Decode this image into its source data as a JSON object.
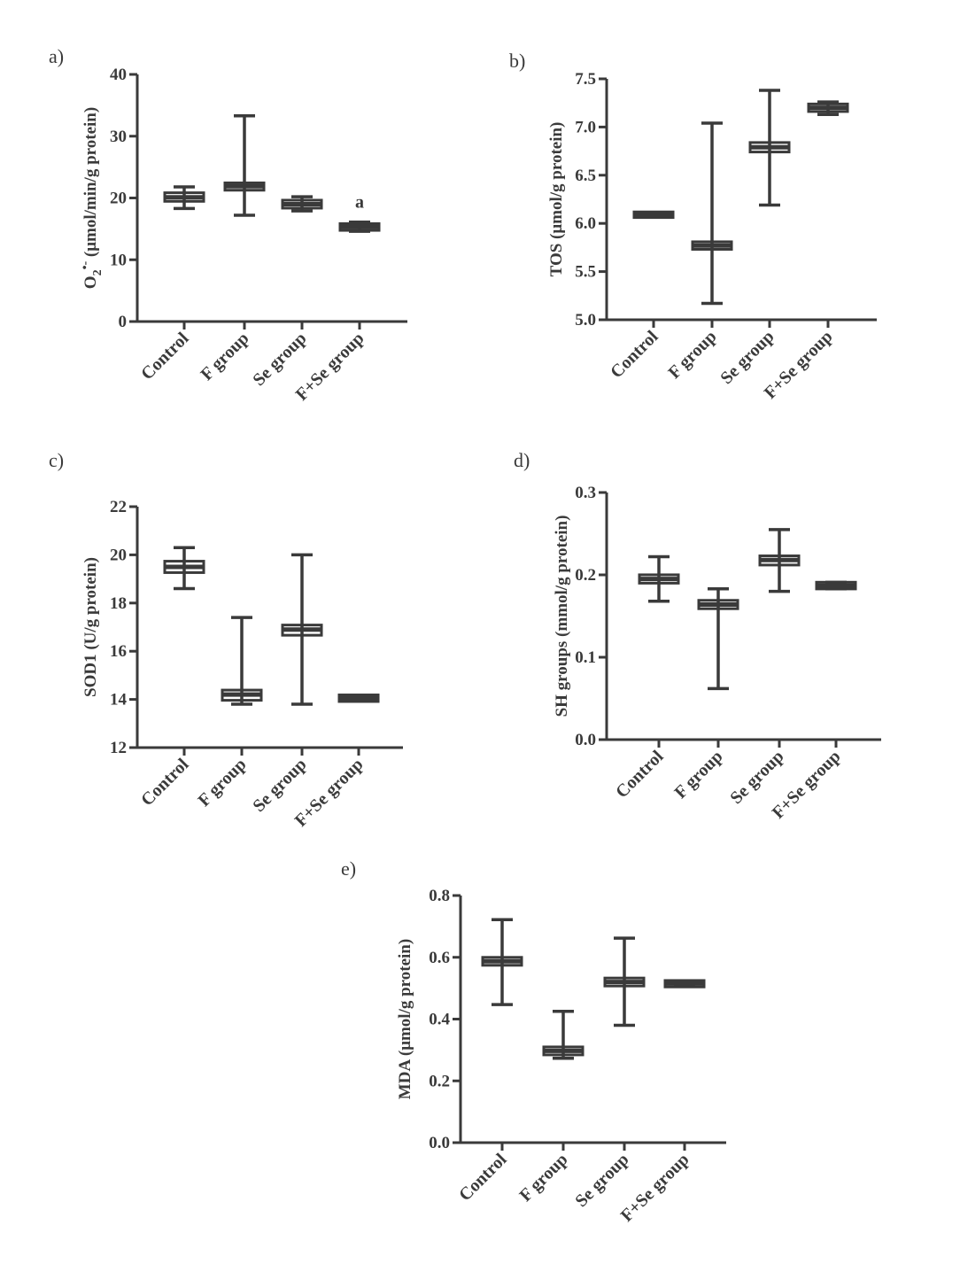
{
  "chart_data": [
    {
      "panel": "a)",
      "type": "box",
      "ylabel": "O2•- (μmol/min/g protein)",
      "ylabel_main": "O",
      "ylabel_sub": "2",
      "ylabel_sup": "•-",
      "ylabel_rest": " (μmol/min/g protein)",
      "ylim": [
        0,
        40
      ],
      "ticks": [
        "0",
        "10",
        "20",
        "30",
        "40"
      ],
      "categories": [
        "Control",
        "F group",
        "Se group",
        "F+Se group"
      ],
      "series": [
        {
          "min": 18.3,
          "q1": 19.6,
          "median": 20.1,
          "q3": 20.7,
          "max": 21.8
        },
        {
          "min": 17.2,
          "q1": 21.4,
          "median": 21.9,
          "q3": 22.3,
          "max": 33.3
        },
        {
          "min": 17.9,
          "q1": 18.5,
          "median": 19.0,
          "q3": 19.5,
          "max": 20.2
        },
        {
          "min": 14.6,
          "q1": 14.9,
          "median": 15.3,
          "q3": 15.7,
          "max": 16.1
        }
      ],
      "annotations": [
        {
          "category": "F+Se group",
          "text": "a"
        }
      ]
    },
    {
      "panel": "b)",
      "type": "box",
      "ylabel": "TOS (μmol/g protein)",
      "ylim": [
        5.0,
        7.5
      ],
      "ticks": [
        "5.0",
        "5.5",
        "6.0",
        "6.5",
        "7.0",
        "7.5"
      ],
      "categories": [
        "Control",
        "F group",
        "Se group",
        "F+Se group"
      ],
      "series": [
        {
          "min": 6.07,
          "q1": 6.07,
          "median": 6.09,
          "q3": 6.11,
          "max": 6.11
        },
        {
          "min": 5.17,
          "q1": 5.74,
          "median": 5.77,
          "q3": 5.8,
          "max": 7.04
        },
        {
          "min": 6.19,
          "q1": 6.75,
          "median": 6.79,
          "q3": 6.83,
          "max": 7.38
        },
        {
          "min": 7.13,
          "q1": 7.17,
          "median": 7.2,
          "q3": 7.23,
          "max": 7.26
        }
      ]
    },
    {
      "panel": "c)",
      "type": "box",
      "ylabel": "SOD1 (U/g protein)",
      "ylim": [
        12,
        22
      ],
      "ticks": [
        "12",
        "14",
        "16",
        "18",
        "20",
        "22"
      ],
      "categories": [
        "Control",
        "F group",
        "Se group",
        "F+Se group"
      ],
      "series": [
        {
          "min": 18.6,
          "q1": 19.3,
          "median": 19.5,
          "q3": 19.7,
          "max": 20.3
        },
        {
          "min": 13.8,
          "q1": 14.0,
          "median": 14.2,
          "q3": 14.35,
          "max": 17.4
        },
        {
          "min": 13.8,
          "q1": 16.7,
          "median": 16.9,
          "q3": 17.05,
          "max": 20.0
        },
        {
          "min": 13.95,
          "q1": 13.95,
          "median": 14.05,
          "q3": 14.15,
          "max": 14.15
        }
      ]
    },
    {
      "panel": "d)",
      "type": "box",
      "ylabel": "SH groups (mmol/g protein)",
      "ylim": [
        0.0,
        0.3
      ],
      "ticks": [
        "0.0",
        "0.1",
        "0.2",
        "0.3"
      ],
      "categories": [
        "Control",
        "F group",
        "Se group",
        "F+Se group"
      ],
      "series": [
        {
          "min": 0.168,
          "q1": 0.191,
          "median": 0.195,
          "q3": 0.199,
          "max": 0.222
        },
        {
          "min": 0.062,
          "q1": 0.16,
          "median": 0.164,
          "q3": 0.168,
          "max": 0.183
        },
        {
          "min": 0.18,
          "q1": 0.213,
          "median": 0.218,
          "q3": 0.222,
          "max": 0.255
        },
        {
          "min": 0.183,
          "q1": 0.184,
          "median": 0.187,
          "q3": 0.19,
          "max": 0.191
        }
      ]
    },
    {
      "panel": "e)",
      "type": "box",
      "ylabel": "MDA (μmol/g protein)",
      "ylim": [
        0.0,
        0.8
      ],
      "ticks": [
        "0.0",
        "0.2",
        "0.4",
        "0.6",
        "0.8"
      ],
      "categories": [
        "Control",
        "F group",
        "Se group",
        "F+Se group"
      ],
      "series": [
        {
          "min": 0.447,
          "q1": 0.577,
          "median": 0.587,
          "q3": 0.597,
          "max": 0.722
        },
        {
          "min": 0.273,
          "q1": 0.287,
          "median": 0.297,
          "q3": 0.307,
          "max": 0.425
        },
        {
          "min": 0.38,
          "q1": 0.51,
          "median": 0.52,
          "q3": 0.53,
          "max": 0.662
        },
        {
          "min": 0.507,
          "q1": 0.507,
          "median": 0.515,
          "q3": 0.522,
          "max": 0.522
        }
      ]
    }
  ]
}
